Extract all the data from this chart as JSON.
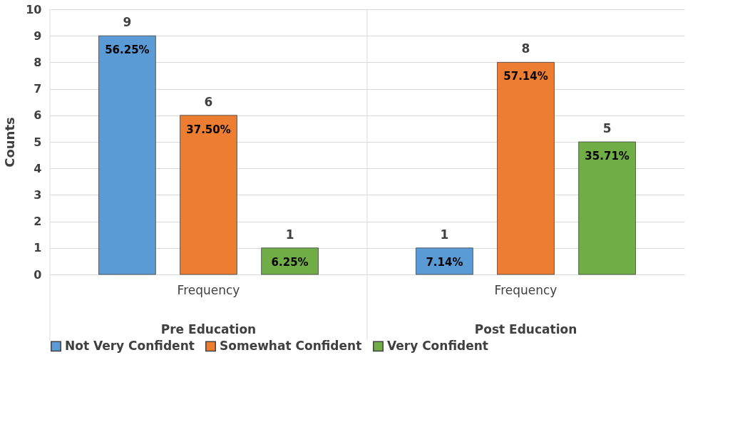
{
  "chart_data": {
    "type": "bar",
    "ylabel": "Counts",
    "categories": [
      "Frequency",
      "Frequency"
    ],
    "annotations": [
      "Pre Education",
      "Post Education",
      "56.25%",
      "7.14%",
      "37.50%",
      "57.14%",
      "6.25%",
      "35.71%"
    ],
    "series": [
      {
        "name": "Not Very Confident",
        "color": "#5b9bd5",
        "values": [
          9,
          1
        ]
      },
      {
        "name": "Somewhat Confident",
        "color": "#ed7d31",
        "values": [
          6,
          8
        ]
      },
      {
        "name": "Very Confident",
        "color": "#70ad47",
        "values": [
          1,
          5
        ]
      }
    ],
    "ylim": [
      0,
      10
    ],
    "yticks": [
      0,
      1,
      2,
      3,
      4,
      5,
      6,
      7,
      8,
      9,
      10
    ],
    "grid": "y",
    "legend": "bottom",
    "data_labels": true
  }
}
